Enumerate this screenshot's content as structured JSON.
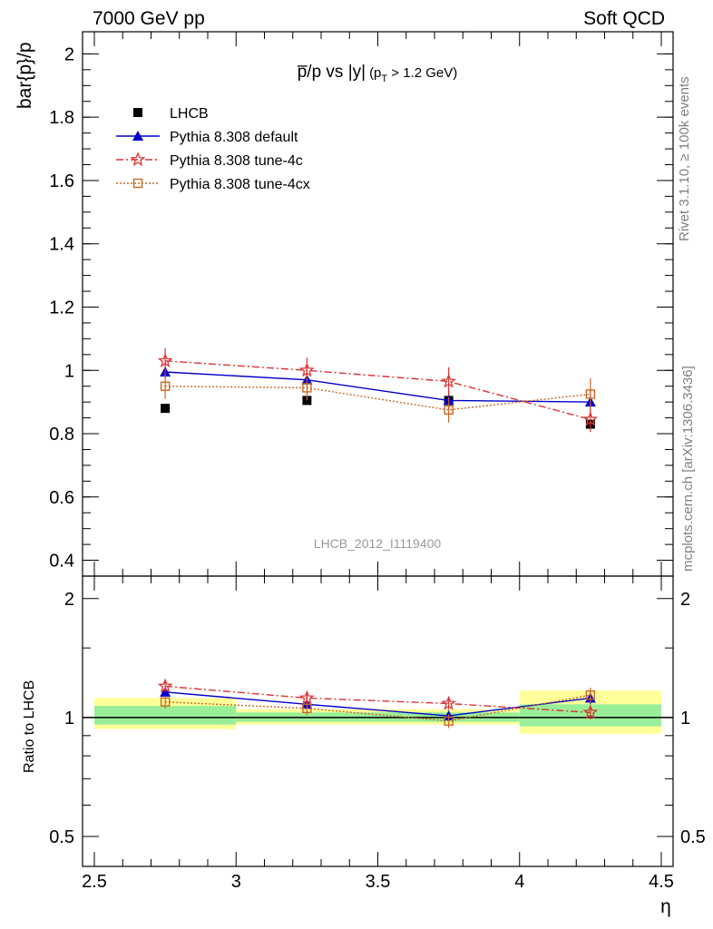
{
  "header": {
    "energy_label": "7000 GeV pp",
    "category_label": "Soft QCD"
  },
  "side": {
    "rivet_label": "Rivet 3.1.10, ≥ 100k events",
    "source_label": "mcplots.cern.ch [arXiv:1306.3436]"
  },
  "chart_data": [
    {
      "type": "scatter",
      "title": "p̅/p vs |y|",
      "title_parts": {
        "main": "p̅/p vs |y|",
        "cut_p": "(p",
        "cut_sub": "T",
        "cut_rest": " > 1.2 GeV)"
      },
      "ylabel": "bar{p}/p",
      "xlim": [
        2.5,
        4.5
      ],
      "ylim": [
        0.35,
        2.07
      ],
      "yticks": [
        0.4,
        0.6,
        0.8,
        1,
        1.2,
        1.4,
        1.6,
        1.8,
        2
      ],
      "ytick_labels": [
        "0.4",
        "0.6",
        "0.8",
        "1",
        "1.2",
        "1.4",
        "1.6",
        "1.8",
        "2"
      ],
      "watermark": "LHCB_2012_I1119400",
      "legend_position": "top-left",
      "series": [
        {
          "name": "LHCB",
          "marker": "filled-square",
          "line": "none",
          "color": "#000000",
          "x": [
            2.75,
            3.25,
            3.75,
            4.25
          ],
          "y": [
            0.88,
            0.905,
            0.905,
            0.83
          ],
          "err": [
            0.01,
            0.01,
            0.01,
            0.01
          ]
        },
        {
          "name": "Pythia 8.308 default",
          "marker": "filled-triangle",
          "line": "solid",
          "color": "#0000cc",
          "x": [
            2.75,
            3.25,
            3.75,
            4.25
          ],
          "y": [
            0.995,
            0.97,
            0.905,
            0.9
          ],
          "err": [
            0.02,
            0.02,
            0.03,
            0.04
          ]
        },
        {
          "name": "Pythia 8.308 tune-4c",
          "marker": "open-star",
          "line": "dashdot",
          "color": "#dd3333",
          "x": [
            2.75,
            3.25,
            3.75,
            4.25
          ],
          "y": [
            1.03,
            1.0,
            0.965,
            0.845
          ],
          "err": [
            0.04,
            0.04,
            0.045,
            0.04
          ]
        },
        {
          "name": "Pythia 8.308 tune-4cx",
          "marker": "open-square",
          "line": "dotted",
          "color": "#cc6622",
          "x": [
            2.75,
            3.25,
            3.75,
            4.25
          ],
          "y": [
            0.95,
            0.945,
            0.875,
            0.925
          ],
          "err": [
            0.04,
            0.04,
            0.04,
            0.05
          ]
        }
      ]
    },
    {
      "type": "scatter",
      "ylabel": "Ratio to LHCB",
      "xlabel": "η",
      "xlim": [
        2.5,
        4.5
      ],
      "ylim": [
        0.42,
        2.28
      ],
      "yscale": "log",
      "xticks": [
        2.5,
        3,
        3.5,
        4,
        4.5
      ],
      "xtick_labels": [
        "2.5",
        "3",
        "3.5",
        "4",
        "4.5"
      ],
      "yticks": [
        0.5,
        1,
        2
      ],
      "ytick_labels": [
        "0.5",
        "1",
        "2"
      ],
      "bands": [
        {
          "x0": 2.5,
          "x1": 3.0,
          "yellow": [
            0.935,
            1.12
          ],
          "green": [
            0.96,
            1.07
          ]
        },
        {
          "x0": 3.0,
          "x1": 3.5,
          "yellow": [
            0.96,
            1.05
          ],
          "green": [
            0.975,
            1.03
          ]
        },
        {
          "x0": 3.5,
          "x1": 4.0,
          "yellow": [
            0.96,
            1.05
          ],
          "green": [
            0.975,
            1.03
          ]
        },
        {
          "x0": 4.0,
          "x1": 4.5,
          "yellow": [
            0.91,
            1.17
          ],
          "green": [
            0.95,
            1.08
          ]
        }
      ],
      "band_colors": {
        "yellow": "#ffff99",
        "green": "#99ee99"
      },
      "series": [
        {
          "name": "Pythia 8.308 default",
          "x": [
            2.75,
            3.25,
            3.75,
            4.25
          ],
          "y": [
            1.16,
            1.08,
            1.01,
            1.12
          ],
          "err": [
            0.02,
            0.02,
            0.03,
            0.04
          ]
        },
        {
          "name": "Pythia 8.308 tune-4c",
          "x": [
            2.75,
            3.25,
            3.75,
            4.25
          ],
          "y": [
            1.2,
            1.12,
            1.085,
            1.03
          ],
          "err": [
            0.04,
            0.04,
            0.04,
            0.04
          ]
        },
        {
          "name": "Pythia 8.308 tune-4cx",
          "x": [
            2.75,
            3.25,
            3.75,
            4.25
          ],
          "y": [
            1.095,
            1.055,
            0.98,
            1.14
          ],
          "err": [
            0.04,
            0.04,
            0.04,
            0.05
          ]
        }
      ]
    }
  ]
}
